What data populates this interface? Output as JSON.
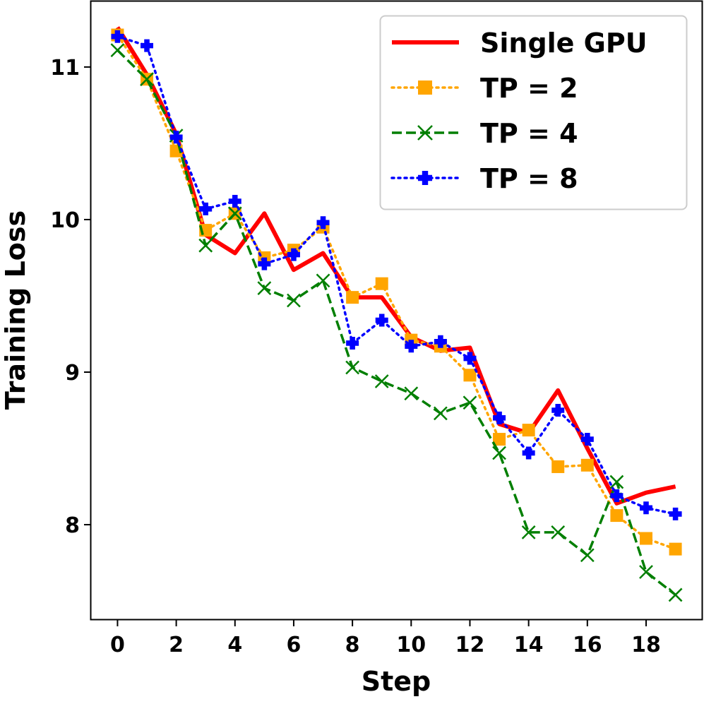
{
  "chart_data": {
    "type": "line",
    "title": "",
    "xlabel": "Step",
    "ylabel": "Training Loss",
    "xlim": [
      -0.9,
      19.9
    ],
    "ylim": [
      7.38,
      11.43
    ],
    "xticks": [
      0,
      2,
      4,
      6,
      8,
      10,
      12,
      14,
      16,
      18
    ],
    "xtick_labels": [
      "0",
      "2",
      "4",
      "6",
      "8",
      "10",
      "12",
      "14",
      "16",
      "18"
    ],
    "yticks": [
      8,
      9,
      10,
      11
    ],
    "ytick_labels": [
      "8",
      "9",
      "10",
      "11"
    ],
    "grid": false,
    "legend_position": "top-right",
    "x": [
      0,
      1,
      2,
      3,
      4,
      5,
      6,
      7,
      8,
      9,
      10,
      11,
      12,
      13,
      14,
      15,
      16,
      17,
      18,
      19
    ],
    "series": [
      {
        "name": "Single GPU",
        "color": "#ff0000",
        "line_style": "solid",
        "marker": "none",
        "values": [
          11.26,
          10.95,
          10.56,
          9.9,
          9.78,
          10.04,
          9.67,
          9.78,
          9.49,
          9.49,
          9.23,
          9.14,
          9.16,
          8.66,
          8.6,
          8.88,
          8.5,
          8.14,
          8.21,
          8.25
        ]
      },
      {
        "name": "TP = 2",
        "color": "#ffa500",
        "line_style": "dotted",
        "marker": "square",
        "values": [
          11.21,
          10.92,
          10.45,
          9.93,
          10.04,
          9.75,
          9.8,
          9.95,
          9.49,
          9.58,
          9.21,
          9.17,
          8.98,
          8.56,
          8.62,
          8.38,
          8.39,
          8.06,
          7.91,
          7.84
        ]
      },
      {
        "name": "TP = 4",
        "color": "#007f00",
        "line_style": "dashed",
        "marker": "x",
        "values": [
          11.11,
          10.92,
          10.55,
          9.83,
          10.04,
          9.55,
          9.47,
          9.6,
          9.03,
          8.94,
          8.86,
          8.73,
          8.8,
          8.47,
          7.95,
          7.95,
          7.8,
          8.28,
          7.69,
          7.54
        ]
      },
      {
        "name": "TP = 8",
        "color": "#0000ff",
        "line_style": "dotted",
        "marker": "plus",
        "values": [
          11.2,
          11.14,
          10.54,
          10.07,
          10.12,
          9.71,
          9.77,
          9.98,
          9.19,
          9.34,
          9.17,
          9.2,
          9.09,
          8.7,
          8.47,
          8.75,
          8.56,
          8.19,
          8.11,
          8.07
        ]
      }
    ]
  }
}
